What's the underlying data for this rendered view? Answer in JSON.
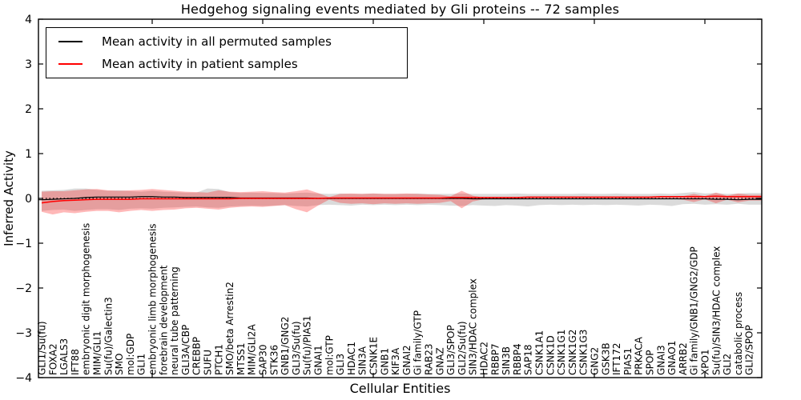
{
  "chart_data": {
    "type": "area",
    "title": "Hedgehog signaling events mediated by Gli proteins -- 72 samples",
    "xlabel": "Cellular Entities",
    "ylabel": "Inferred Activity",
    "ylim": [
      -4,
      4
    ],
    "y_ticks": [
      4,
      3,
      2,
      1,
      0,
      -1,
      -2,
      -3,
      -4
    ],
    "y_tick_labels": [
      "4",
      "3",
      "2",
      "1",
      "0",
      "−1",
      "−2",
      "−3",
      "−4"
    ],
    "x_minor_tick_positions": [
      10,
      20,
      30,
      40,
      50,
      60
    ],
    "grid": false,
    "legend": {
      "position": "upper left",
      "entries": [
        {
          "label": "Mean activity in all permuted samples",
          "color": "#000000"
        },
        {
          "label": "Mean activity in patient samples",
          "color": "#ff0000"
        }
      ]
    },
    "colors": {
      "permuted_mean_line": "#000000",
      "patient_mean_line": "#ff0000",
      "permuted_band_fill": "rgba(0,0,0,0.14)",
      "patient_band_fill": "rgba(255,0,0,0.28)",
      "zero_reference_line": "#000000"
    },
    "categories": [
      "GLI1/Su(fu)",
      "FOXA2",
      "LGALS3",
      "IFT88",
      "embryonic digit morphogenesis",
      "MIM/GLI1",
      "Su(fu)/Galectin3",
      "SMO",
      "mol:GDP",
      "GLI1",
      "embryonic limb morphogenesis",
      "forebrain development",
      "neural tube patterning",
      "GLI3A/CBP",
      "CREBBP",
      "SUFU",
      "PTCH1",
      "SMO/beta Arrestin2",
      "MTSS1",
      "MIM/GLI2A",
      "SAP30",
      "STK36",
      "GNB1/GNG2",
      "GLI3/Su(fu)",
      "Su(fu)/PIAS1",
      "GNAI1",
      "mol:GTP",
      "GLI3",
      "HDAC1",
      "SIN3A",
      "CSNK1E",
      "GNB1",
      "KIF3A",
      "GNAI2",
      "Gi family/GTP",
      "RAB23",
      "GNAZ",
      "GLI3/SPOP",
      "GLI2/Su(fu)",
      "SIN3/HDAC complex",
      "HDAC2",
      "RBBP7",
      "SIN3B",
      "RBBP4",
      "SAP18",
      "CSNK1A1",
      "CSNK1D",
      "CSNK1G1",
      "CSNK1G2",
      "CSNK1G3",
      "GNG2",
      "GSK3B",
      "IFT172",
      "PIAS1",
      "PRKACA",
      "SPOP",
      "GNAI3",
      "GNAO1",
      "ARRB2",
      "Gi family/GNB1/GNG2/GDP",
      "XPO1",
      "Su(fu)/SIN3/HDAC complex",
      "GLI2",
      "catabolic process",
      "GLI2/SPOP"
    ],
    "series": [
      {
        "name": "Mean activity in all permuted samples",
        "type": "line",
        "values": [
          -0.03,
          -0.02,
          -0.01,
          0.0,
          0.02,
          0.03,
          0.03,
          0.03,
          0.03,
          0.04,
          0.04,
          0.03,
          0.03,
          0.02,
          0.02,
          0.02,
          0.02,
          0.02,
          0.01,
          0.01,
          0.01,
          0.01,
          0.01,
          0.01,
          0.01,
          0.0,
          0.0,
          0.0,
          0.0,
          0.0,
          0.0,
          0.0,
          0.0,
          0.0,
          0.0,
          0.0,
          0.0,
          0.0,
          0.0,
          -0.01,
          -0.01,
          -0.01,
          -0.01,
          -0.01,
          -0.01,
          -0.01,
          -0.01,
          -0.01,
          -0.01,
          -0.01,
          -0.01,
          -0.01,
          -0.01,
          -0.01,
          -0.01,
          -0.01,
          -0.01,
          -0.01,
          -0.01,
          -0.01,
          -0.01,
          -0.02,
          -0.02,
          -0.03,
          -0.02
        ]
      },
      {
        "name": "Mean activity in patient samples",
        "type": "line",
        "values": [
          -0.1,
          -0.07,
          -0.05,
          -0.04,
          -0.03,
          -0.02,
          -0.02,
          -0.02,
          -0.02,
          -0.01,
          -0.01,
          -0.01,
          -0.01,
          -0.01,
          -0.01,
          -0.01,
          -0.01,
          -0.01,
          0.0,
          0.0,
          0.0,
          0.0,
          0.0,
          0.0,
          0.0,
          0.0,
          0.01,
          0.01,
          0.01,
          0.01,
          0.01,
          0.01,
          0.01,
          0.01,
          0.01,
          0.01,
          0.01,
          0.02,
          0.02,
          0.02,
          0.02,
          0.02,
          0.02,
          0.02,
          0.03,
          0.03,
          0.03,
          0.03,
          0.03,
          0.03,
          0.03,
          0.03,
          0.03,
          0.03,
          0.03,
          0.03,
          0.04,
          0.04,
          0.04,
          0.04,
          0.04,
          0.05,
          0.04,
          0.04,
          0.04
        ]
      },
      {
        "name": "Permuted samples spread (band)",
        "type": "band",
        "upper": [
          0.17,
          0.18,
          0.19,
          0.22,
          0.22,
          0.19,
          0.17,
          0.18,
          0.16,
          0.15,
          0.17,
          0.15,
          0.14,
          0.13,
          0.13,
          0.22,
          0.21,
          0.14,
          0.12,
          0.13,
          0.12,
          0.12,
          0.11,
          0.12,
          0.13,
          0.11,
          0.1,
          0.11,
          0.1,
          0.1,
          0.11,
          0.1,
          0.1,
          0.1,
          0.11,
          0.1,
          0.1,
          0.1,
          0.11,
          0.1,
          0.1,
          0.1,
          0.1,
          0.11,
          0.1,
          0.1,
          0.1,
          0.1,
          0.1,
          0.11,
          0.1,
          0.1,
          0.11,
          0.1,
          0.1,
          0.1,
          0.11,
          0.1,
          0.12,
          0.14,
          0.11,
          0.12,
          0.1,
          0.11,
          0.12
        ],
        "lower": [
          -0.28,
          -0.26,
          -0.25,
          -0.28,
          -0.26,
          -0.24,
          -0.24,
          -0.26,
          -0.23,
          -0.22,
          -0.23,
          -0.21,
          -0.2,
          -0.19,
          -0.18,
          -0.2,
          -0.21,
          -0.18,
          -0.17,
          -0.16,
          -0.17,
          -0.16,
          -0.15,
          -0.17,
          -0.18,
          -0.15,
          -0.14,
          -0.15,
          -0.16,
          -0.14,
          -0.15,
          -0.14,
          -0.15,
          -0.14,
          -0.15,
          -0.14,
          -0.15,
          -0.16,
          -0.17,
          -0.15,
          -0.16,
          -0.17,
          -0.15,
          -0.16,
          -0.18,
          -0.15,
          -0.14,
          -0.15,
          -0.14,
          -0.15,
          -0.14,
          -0.15,
          -0.14,
          -0.15,
          -0.16,
          -0.14,
          -0.15,
          -0.17,
          -0.13,
          -0.12,
          -0.14,
          -0.13,
          -0.14,
          -0.12,
          -0.14
        ]
      },
      {
        "name": "Patient samples spread (band)",
        "type": "band",
        "upper": [
          0.15,
          0.16,
          0.16,
          0.18,
          0.2,
          0.21,
          0.18,
          0.17,
          0.18,
          0.19,
          0.21,
          0.19,
          0.17,
          0.15,
          0.14,
          0.13,
          0.18,
          0.15,
          0.14,
          0.15,
          0.16,
          0.14,
          0.13,
          0.16,
          0.2,
          0.12,
          0.03,
          0.1,
          0.11,
          0.1,
          0.11,
          0.1,
          0.1,
          0.11,
          0.1,
          0.09,
          0.08,
          0.05,
          0.17,
          0.06,
          0.02,
          0.02,
          0.02,
          0.02,
          0.03,
          0.03,
          0.03,
          0.03,
          0.03,
          0.03,
          0.03,
          0.03,
          0.03,
          0.03,
          0.03,
          0.03,
          0.04,
          0.04,
          0.05,
          0.1,
          0.05,
          0.13,
          0.06,
          0.11,
          0.08
        ],
        "lower": [
          -0.3,
          -0.36,
          -0.31,
          -0.33,
          -0.3,
          -0.28,
          -0.28,
          -0.31,
          -0.28,
          -0.26,
          -0.28,
          -0.26,
          -0.25,
          -0.22,
          -0.21,
          -0.23,
          -0.25,
          -0.21,
          -0.19,
          -0.18,
          -0.19,
          -0.17,
          -0.15,
          -0.24,
          -0.31,
          -0.16,
          -0.03,
          -0.1,
          -0.12,
          -0.11,
          -0.13,
          -0.11,
          -0.12,
          -0.11,
          -0.12,
          -0.11,
          -0.1,
          -0.06,
          -0.22,
          -0.07,
          -0.02,
          -0.01,
          -0.01,
          -0.01,
          -0.02,
          -0.01,
          -0.01,
          -0.01,
          -0.01,
          -0.01,
          -0.01,
          -0.01,
          -0.01,
          -0.01,
          -0.01,
          -0.01,
          -0.01,
          -0.01,
          -0.03,
          -0.08,
          -0.02,
          -0.11,
          -0.03,
          -0.09,
          -0.05
        ]
      },
      {
        "name": "Zero reference",
        "type": "dotted-line",
        "y": 0
      }
    ]
  }
}
